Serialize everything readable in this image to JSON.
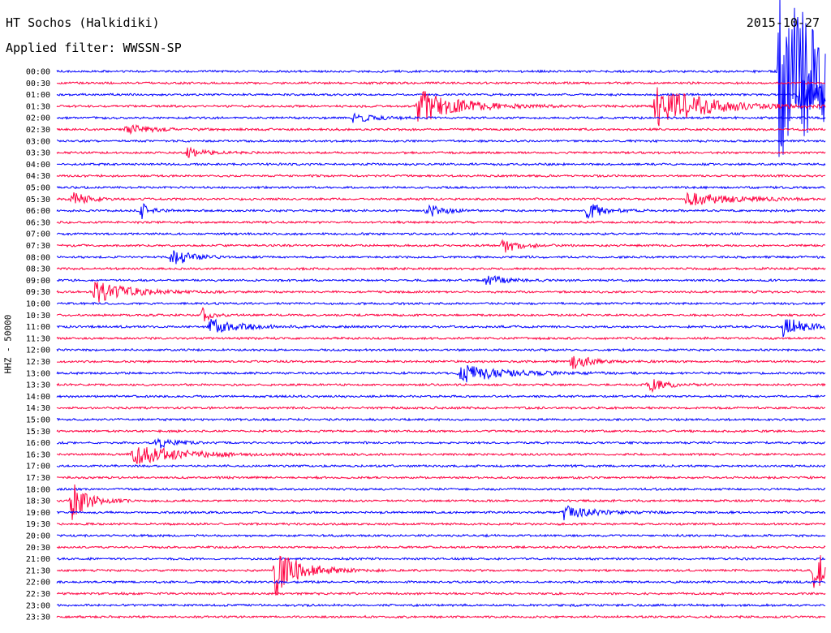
{
  "header": {
    "station": "HT Sochos (Halkidiki)",
    "filter": "Applied filter: WWSSN-SP",
    "date": "2015-10-27"
  },
  "chart_data": {
    "type": "line",
    "title": "HT Sochos (Halkidiki)",
    "subtitle": "Applied filter: WWSSN-SP",
    "ylabel": "HHZ - 50000",
    "xlabel": "",
    "row_labels": [
      "00:00",
      "00:30",
      "01:00",
      "01:30",
      "02:00",
      "02:30",
      "03:00",
      "03:30",
      "04:00",
      "04:30",
      "05:00",
      "05:30",
      "06:00",
      "06:30",
      "07:00",
      "07:30",
      "08:00",
      "08:30",
      "09:00",
      "09:30",
      "10:00",
      "10:30",
      "11:00",
      "11:30",
      "12:00",
      "12:30",
      "13:00",
      "13:30",
      "14:00",
      "14:30",
      "15:00",
      "15:30",
      "16:00",
      "16:30",
      "17:00",
      "17:30",
      "18:00",
      "18:30",
      "19:00",
      "19:30",
      "20:00",
      "20:30",
      "21:00",
      "21:30",
      "22:00",
      "22:30",
      "23:00",
      "23:30"
    ],
    "colors": [
      "#0000ff",
      "#ff0040"
    ],
    "events": [
      {
        "row": 0,
        "x": 0.94,
        "amp": 120,
        "dur": 0.09
      },
      {
        "row": 2,
        "x": 0.965,
        "amp": 20,
        "dur": 0.05
      },
      {
        "row": 3,
        "x": 0.47,
        "amp": 22,
        "dur": 0.05
      },
      {
        "row": 3,
        "x": 0.78,
        "amp": 26,
        "dur": 0.06
      },
      {
        "row": 4,
        "x": 0.385,
        "amp": 5,
        "dur": 0.03
      },
      {
        "row": 5,
        "x": 0.09,
        "amp": 6,
        "dur": 0.03
      },
      {
        "row": 7,
        "x": 0.17,
        "amp": 6,
        "dur": 0.02
      },
      {
        "row": 11,
        "x": 0.82,
        "amp": 8,
        "dur": 0.06
      },
      {
        "row": 11,
        "x": 0.02,
        "amp": 8,
        "dur": 0.02
      },
      {
        "row": 12,
        "x": 0.11,
        "amp": 12,
        "dur": 0.01
      },
      {
        "row": 12,
        "x": 0.48,
        "amp": 9,
        "dur": 0.02
      },
      {
        "row": 12,
        "x": 0.69,
        "amp": 11,
        "dur": 0.02
      },
      {
        "row": 15,
        "x": 0.58,
        "amp": 9,
        "dur": 0.02
      },
      {
        "row": 16,
        "x": 0.15,
        "amp": 12,
        "dur": 0.02
      },
      {
        "row": 18,
        "x": 0.56,
        "amp": 8,
        "dur": 0.02
      },
      {
        "row": 19,
        "x": 0.05,
        "amp": 14,
        "dur": 0.04
      },
      {
        "row": 21,
        "x": 0.19,
        "amp": 10,
        "dur": 0.01
      },
      {
        "row": 22,
        "x": 0.2,
        "amp": 9,
        "dur": 0.04
      },
      {
        "row": 22,
        "x": 0.945,
        "amp": 12,
        "dur": 0.03
      },
      {
        "row": 25,
        "x": 0.67,
        "amp": 11,
        "dur": 0.02
      },
      {
        "row": 26,
        "x": 0.525,
        "amp": 12,
        "dur": 0.05
      },
      {
        "row": 27,
        "x": 0.77,
        "amp": 9,
        "dur": 0.02
      },
      {
        "row": 32,
        "x": 0.13,
        "amp": 7,
        "dur": 0.02
      },
      {
        "row": 33,
        "x": 0.1,
        "amp": 12,
        "dur": 0.06
      },
      {
        "row": 37,
        "x": 0.02,
        "amp": 24,
        "dur": 0.02
      },
      {
        "row": 38,
        "x": 0.66,
        "amp": 10,
        "dur": 0.03
      },
      {
        "row": 43,
        "x": 0.285,
        "amp": 32,
        "dur": 0.03
      },
      {
        "row": 43,
        "x": 0.985,
        "amp": 30,
        "dur": 0.02
      }
    ]
  }
}
